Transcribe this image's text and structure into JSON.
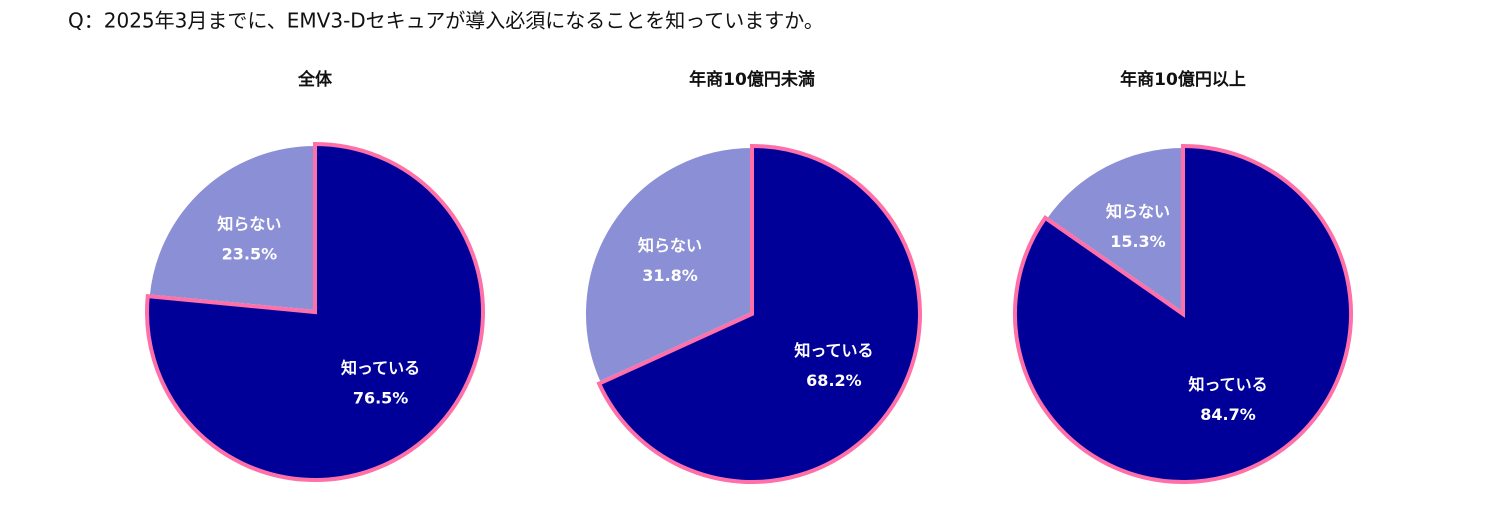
{
  "title": "Q：2025年3月までに、EMV3-Dセキュアが導入必須になることを知っていますか。",
  "chart_data": [
    {
      "type": "pie",
      "title": "全体",
      "categories": [
        "知っている",
        "知らない"
      ],
      "values": [
        76.5,
        23.5
      ],
      "value_labels": [
        "76.5%",
        "23.5%"
      ],
      "colors": [
        "#000099",
        "#8b8fd6"
      ],
      "edgecolors": [
        "#ff6fa8",
        "#ffffff"
      ]
    },
    {
      "type": "pie",
      "title": "年商10億円未満",
      "categories": [
        "知っている",
        "知らない"
      ],
      "values": [
        68.2,
        31.8
      ],
      "value_labels": [
        "68.2%",
        "31.8%"
      ],
      "colors": [
        "#000099",
        "#8b8fd6"
      ],
      "edgecolors": [
        "#ff6fa8",
        "#ffffff"
      ]
    },
    {
      "type": "pie",
      "title": "年商10億円以上",
      "categories": [
        "知っている",
        "知らない"
      ],
      "values": [
        84.7,
        15.3
      ],
      "value_labels": [
        "84.7%",
        "15.3%"
      ],
      "colors": [
        "#000099",
        "#8b8fd6"
      ],
      "edgecolors": [
        "#ff6fa8",
        "#ffffff"
      ]
    }
  ]
}
